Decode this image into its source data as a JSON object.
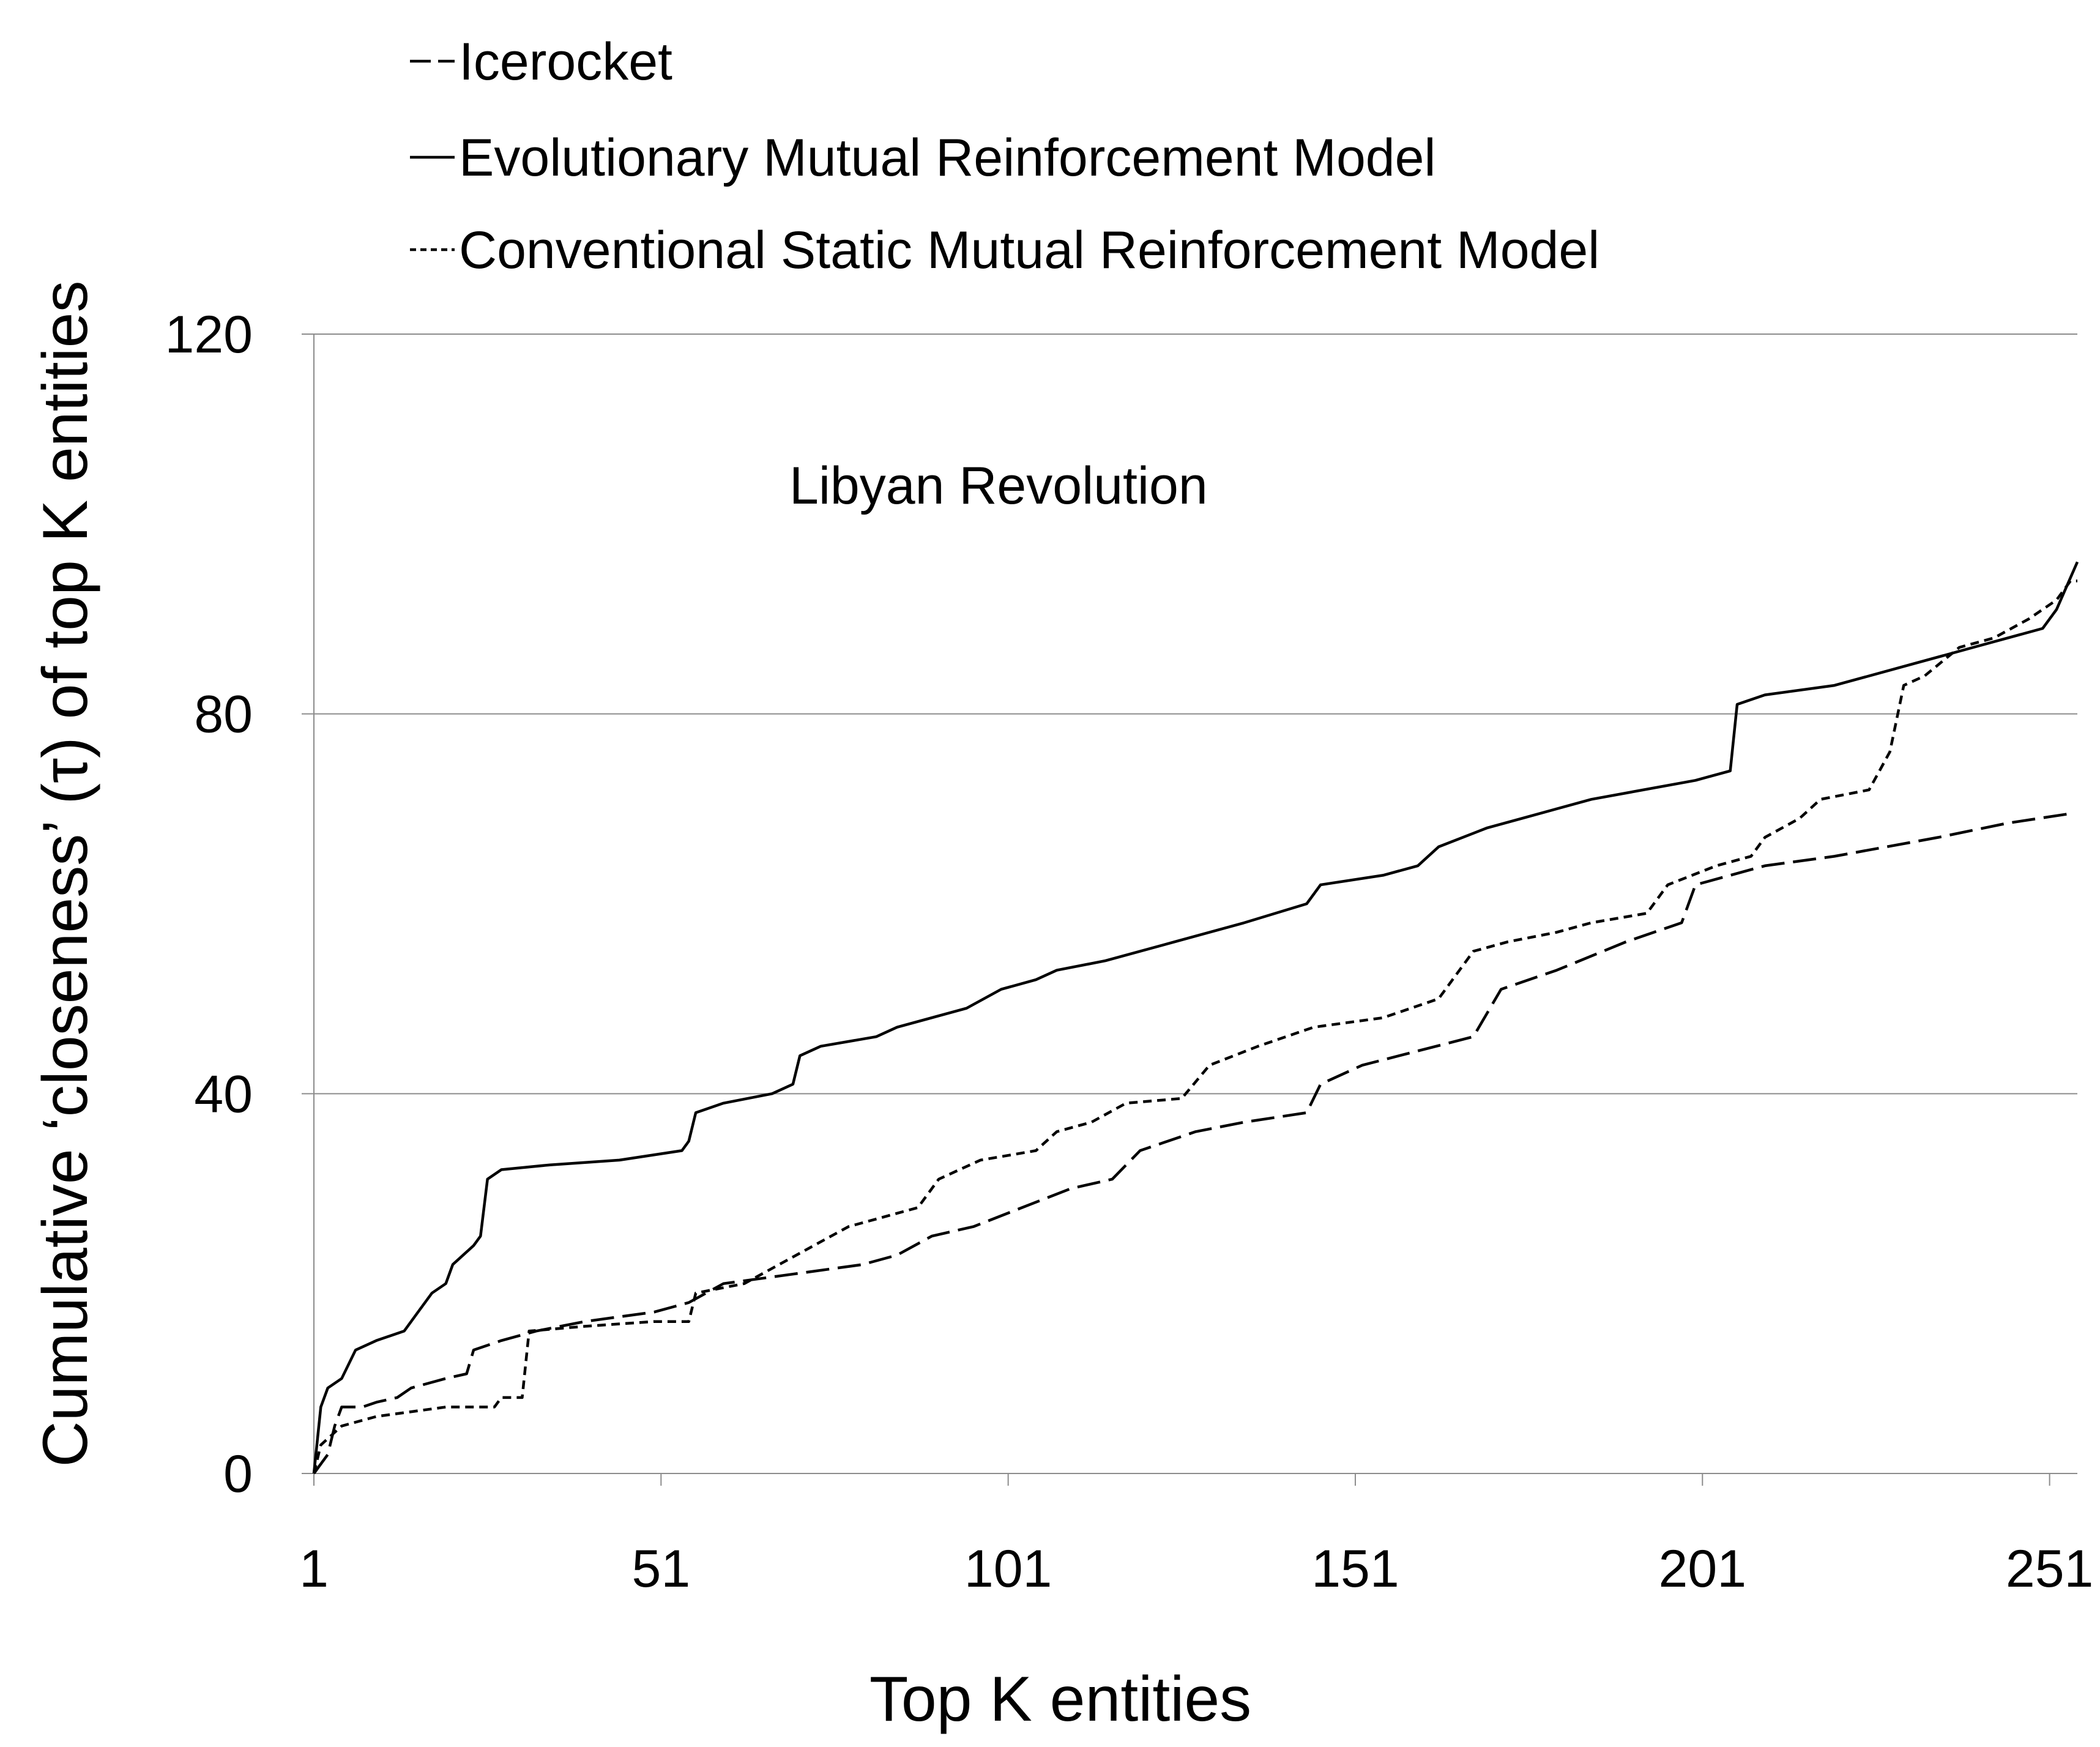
{
  "chart_data": {
    "type": "line",
    "title": "",
    "annotation": "Libyan Revolution",
    "xlabel": "Top K entities",
    "ylabel": "Cumulative ‘closeness’ (τ) of top K entities",
    "xlim": [
      1,
      255
    ],
    "ylim": [
      0,
      120
    ],
    "x_ticks": [
      "1",
      "51",
      "101",
      "151",
      "201",
      "251"
    ],
    "y_ticks": [
      "0",
      "40",
      "80",
      "120"
    ],
    "grid": "horizontal",
    "legend_position": "top",
    "series": [
      {
        "name": "Icerocket",
        "style": "long-dash",
        "color": "#000000",
        "points": [
          [
            1,
            0
          ],
          [
            2,
            1
          ],
          [
            3,
            2
          ],
          [
            4,
            5
          ],
          [
            5,
            7
          ],
          [
            8,
            7
          ],
          [
            10,
            7.5
          ],
          [
            13,
            8
          ],
          [
            15,
            9
          ],
          [
            20,
            10
          ],
          [
            23,
            10.5
          ],
          [
            24,
            13
          ],
          [
            28,
            14
          ],
          [
            33,
            15
          ],
          [
            40,
            16
          ],
          [
            50,
            17
          ],
          [
            55,
            18
          ],
          [
            60,
            20
          ],
          [
            70,
            21
          ],
          [
            80,
            22
          ],
          [
            85,
            23
          ],
          [
            90,
            25
          ],
          [
            96,
            26
          ],
          [
            103,
            28
          ],
          [
            110,
            30
          ],
          [
            116,
            31
          ],
          [
            120,
            34
          ],
          [
            128,
            36
          ],
          [
            135,
            37
          ],
          [
            144,
            38
          ],
          [
            146,
            41
          ],
          [
            152,
            43
          ],
          [
            160,
            44.5
          ],
          [
            168,
            46
          ],
          [
            172,
            51
          ],
          [
            180,
            53
          ],
          [
            190,
            56
          ],
          [
            198,
            58
          ],
          [
            200,
            62
          ],
          [
            210,
            64
          ],
          [
            220,
            65
          ],
          [
            235,
            67
          ],
          [
            245,
            68.5
          ],
          [
            254,
            69.5
          ]
        ]
      },
      {
        "name": "Evolutionary Mutual Reinforcement Model",
        "style": "solid",
        "color": "#000000",
        "points": [
          [
            1,
            0
          ],
          [
            2,
            7
          ],
          [
            3,
            9
          ],
          [
            5,
            10
          ],
          [
            7,
            13
          ],
          [
            10,
            14
          ],
          [
            14,
            15
          ],
          [
            16,
            17
          ],
          [
            18,
            19
          ],
          [
            20,
            20
          ],
          [
            21,
            22
          ],
          [
            24,
            24
          ],
          [
            25,
            25
          ],
          [
            26,
            31
          ],
          [
            28,
            32
          ],
          [
            35,
            32.5
          ],
          [
            45,
            33
          ],
          [
            54,
            34
          ],
          [
            55,
            35
          ],
          [
            56,
            38
          ],
          [
            60,
            39
          ],
          [
            67,
            40
          ],
          [
            70,
            41
          ],
          [
            71,
            44
          ],
          [
            74,
            45
          ],
          [
            82,
            46
          ],
          [
            85,
            47
          ],
          [
            95,
            49
          ],
          [
            100,
            51
          ],
          [
            105,
            52
          ],
          [
            108,
            53
          ],
          [
            115,
            54
          ],
          [
            125,
            56
          ],
          [
            135,
            58
          ],
          [
            144,
            60
          ],
          [
            146,
            62
          ],
          [
            155,
            63
          ],
          [
            160,
            64
          ],
          [
            163,
            66
          ],
          [
            170,
            68
          ],
          [
            175,
            69
          ],
          [
            185,
            71
          ],
          [
            200,
            73
          ],
          [
            205,
            74
          ],
          [
            206,
            81
          ],
          [
            210,
            82
          ],
          [
            220,
            83
          ],
          [
            230,
            85
          ],
          [
            240,
            87
          ],
          [
            250,
            89
          ],
          [
            252,
            91
          ],
          [
            255,
            96
          ]
        ]
      },
      {
        "name": "Conventional Static Mutual Reinforcement Model",
        "style": "short-dash",
        "color": "#000000",
        "points": [
          [
            1,
            0
          ],
          [
            2,
            3
          ],
          [
            5,
            5
          ],
          [
            10,
            6
          ],
          [
            15,
            6.5
          ],
          [
            20,
            7
          ],
          [
            27,
            7
          ],
          [
            28,
            8
          ],
          [
            31,
            8
          ],
          [
            32,
            15
          ],
          [
            40,
            15.5
          ],
          [
            50,
            16
          ],
          [
            55,
            16
          ],
          [
            56,
            19
          ],
          [
            63,
            20
          ],
          [
            68,
            22
          ],
          [
            73,
            24
          ],
          [
            78,
            26
          ],
          [
            88,
            28
          ],
          [
            91,
            31
          ],
          [
            97,
            33
          ],
          [
            105,
            34
          ],
          [
            108,
            36
          ],
          [
            113,
            37
          ],
          [
            118,
            39
          ],
          [
            126,
            39.5
          ],
          [
            130,
            43
          ],
          [
            137,
            45
          ],
          [
            145,
            47
          ],
          [
            155,
            48
          ],
          [
            163,
            50
          ],
          [
            166,
            53
          ],
          [
            168,
            55
          ],
          [
            173,
            56
          ],
          [
            180,
            57
          ],
          [
            185,
            58
          ],
          [
            193,
            59
          ],
          [
            196,
            62
          ],
          [
            203,
            64
          ],
          [
            208,
            65
          ],
          [
            210,
            67
          ],
          [
            215,
            69
          ],
          [
            218,
            71
          ],
          [
            225,
            72
          ],
          [
            228,
            76
          ],
          [
            230,
            83
          ],
          [
            233,
            84
          ],
          [
            238,
            87
          ],
          [
            243,
            88
          ],
          [
            248,
            90
          ],
          [
            252,
            92
          ],
          [
            254,
            94
          ],
          [
            255,
            94
          ]
        ]
      }
    ]
  }
}
